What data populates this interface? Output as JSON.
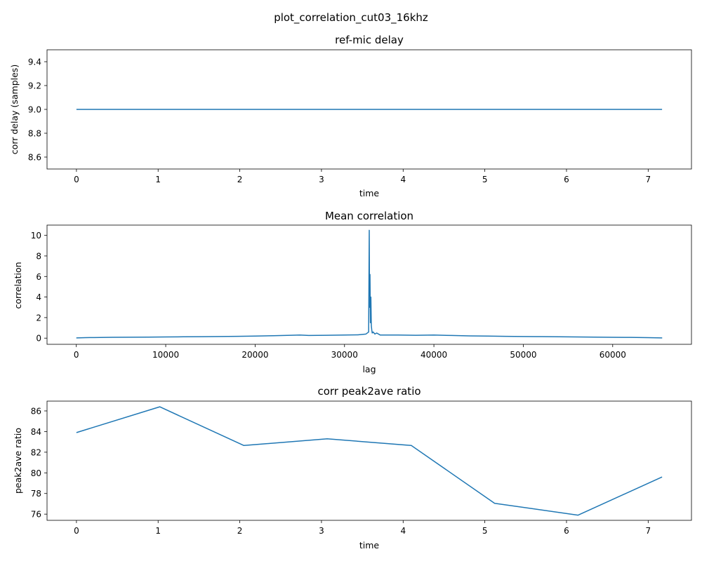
{
  "figure": {
    "suptitle": "plot_correlation_cut03_16khz"
  },
  "chart_data": [
    {
      "type": "line",
      "title": "ref-mic delay",
      "xlabel": "time",
      "ylabel": "corr delay (samples)",
      "xlim": [
        -0.36,
        7.53
      ],
      "ylim": [
        8.5,
        9.5
      ],
      "xticks": [
        0,
        1,
        2,
        3,
        4,
        5,
        6,
        7
      ],
      "yticks": [
        8.6,
        8.8,
        9.0,
        9.2,
        9.4
      ],
      "ytick_decimals": 1,
      "series": [
        {
          "x": [
            0,
            7.17
          ],
          "y": [
            9.0,
            9.0
          ],
          "color": "#1f77b4"
        }
      ],
      "grid": false
    },
    {
      "type": "line",
      "title": "Mean correlation",
      "xlabel": "lag",
      "ylabel": "correlation",
      "xlim": [
        -3276,
        68812
      ],
      "ylim": [
        -0.6,
        11.0
      ],
      "xticks": [
        0,
        10000,
        20000,
        30000,
        40000,
        50000,
        60000
      ],
      "yticks": [
        0,
        2,
        4,
        6,
        8,
        10
      ],
      "ytick_decimals": 0,
      "series": [
        {
          "x": [
            0,
            1000,
            2000,
            4000,
            6000,
            8000,
            10000,
            12000,
            14000,
            16000,
            18000,
            20000,
            22000,
            24000,
            25000,
            26000,
            28000,
            30000,
            31500,
            32400,
            32700,
            32768,
            32800,
            32850,
            32900,
            32950,
            33000,
            33050,
            33100,
            33200,
            33400,
            33600,
            34000,
            36000,
            38000,
            40000,
            42000,
            44000,
            46000,
            48000,
            50000,
            52000,
            54000,
            56000,
            58000,
            60000,
            62000,
            64000,
            65536
          ],
          "y": [
            0.02,
            0.05,
            0.06,
            0.08,
            0.09,
            0.1,
            0.12,
            0.13,
            0.14,
            0.16,
            0.18,
            0.2,
            0.24,
            0.28,
            0.3,
            0.26,
            0.28,
            0.3,
            0.32,
            0.4,
            0.6,
            10.5,
            3.0,
            6.2,
            1.5,
            4.0,
            1.2,
            0.8,
            0.5,
            0.6,
            0.4,
            0.5,
            0.3,
            0.3,
            0.28,
            0.3,
            0.26,
            0.22,
            0.2,
            0.18,
            0.16,
            0.15,
            0.13,
            0.12,
            0.1,
            0.08,
            0.07,
            0.05,
            0.02
          ],
          "color": "#1f77b4"
        }
      ],
      "grid": false
    },
    {
      "type": "line",
      "title": "corr peak2ave ratio",
      "xlabel": "time",
      "ylabel": "peak2ave ratio",
      "xlim": [
        -0.36,
        7.53
      ],
      "ylim": [
        75.4,
        86.95
      ],
      "xticks": [
        0,
        1,
        2,
        3,
        4,
        5,
        6,
        7
      ],
      "yticks": [
        76,
        78,
        80,
        82,
        84,
        86
      ],
      "ytick_decimals": 0,
      "series": [
        {
          "x": [
            0,
            1.02,
            2.05,
            3.07,
            4.1,
            5.12,
            6.14,
            7.17
          ],
          "y": [
            83.9,
            86.4,
            82.65,
            83.3,
            82.65,
            77.05,
            75.9,
            79.6
          ],
          "color": "#1f77b4"
        }
      ],
      "grid": false
    }
  ]
}
